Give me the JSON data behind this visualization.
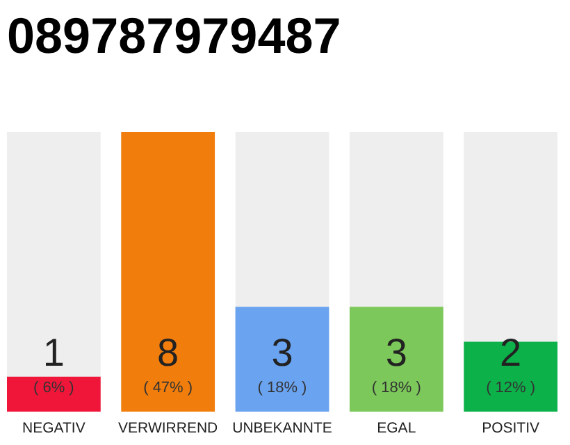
{
  "chart_data": {
    "type": "bar",
    "title": "089787979487",
    "categories": [
      "NEGATIV",
      "VERWIRREND",
      "UNBEKANNTE",
      "EGAL",
      "POSITIV"
    ],
    "values": [
      1,
      8,
      3,
      3,
      2
    ],
    "colors": [
      "#f0163a",
      "#f07d0c",
      "#6aa3f0",
      "#7cc85a",
      "#0db14a"
    ],
    "data_labels": true,
    "tick_labels": "x",
    "ylim": [
      0,
      8
    ],
    "annotations": [
      "( 6% )",
      "( 47% )",
      "( 18% )",
      "( 18% )",
      "( 12% )"
    ]
  }
}
